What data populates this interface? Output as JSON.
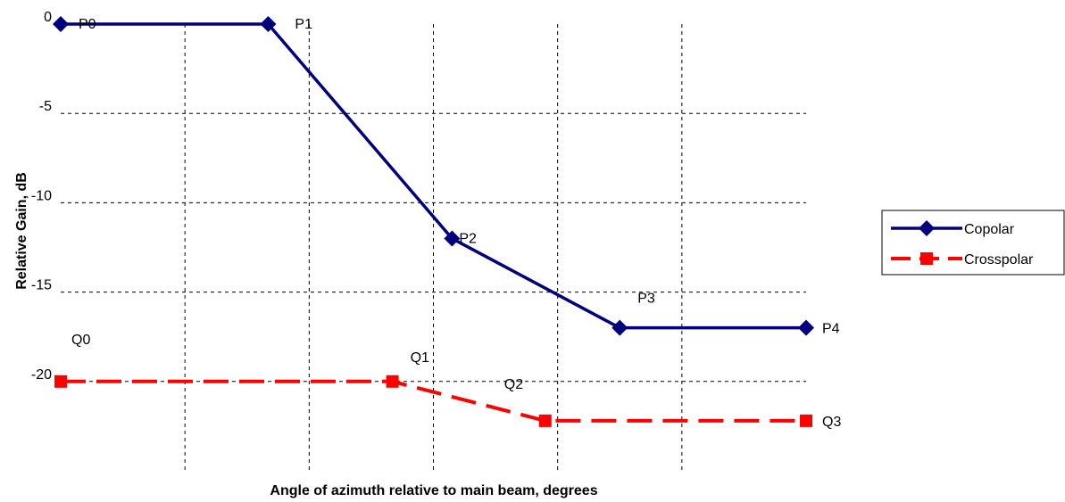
{
  "chart_data": {
    "type": "line",
    "title": "",
    "xlabel": "Angle of azimuth relative to main beam, degrees",
    "ylabel": "Relative Gain, dB",
    "xlim": [
      0,
      6
    ],
    "ylim": [
      -25,
      0
    ],
    "yticks": [
      0,
      -5,
      -10,
      -15,
      -20
    ],
    "grid": true,
    "legend": "right",
    "series": [
      {
        "name": "Copolar",
        "color": "#00007f",
        "marker": "diamond",
        "style": "solid",
        "points": [
          {
            "x": 0.0,
            "y": 0,
            "label": "P0"
          },
          {
            "x": 1.67,
            "y": 0,
            "label": "P1"
          },
          {
            "x": 3.15,
            "y": -12,
            "label": "P2"
          },
          {
            "x": 4.5,
            "y": -17,
            "label": "P3"
          },
          {
            "x": 6.0,
            "y": -17,
            "label": "P4"
          }
        ]
      },
      {
        "name": "Crosspolar",
        "color": "#ff0000",
        "marker": "square",
        "style": "dashed",
        "points": [
          {
            "x": 0.0,
            "y": -20,
            "label": "Q0"
          },
          {
            "x": 2.67,
            "y": -20,
            "label": "Q1"
          },
          {
            "x": 3.9,
            "y": -22.2,
            "label": "Q2"
          },
          {
            "x": 6.0,
            "y": -22.2,
            "label": "Q3"
          }
        ]
      }
    ]
  }
}
